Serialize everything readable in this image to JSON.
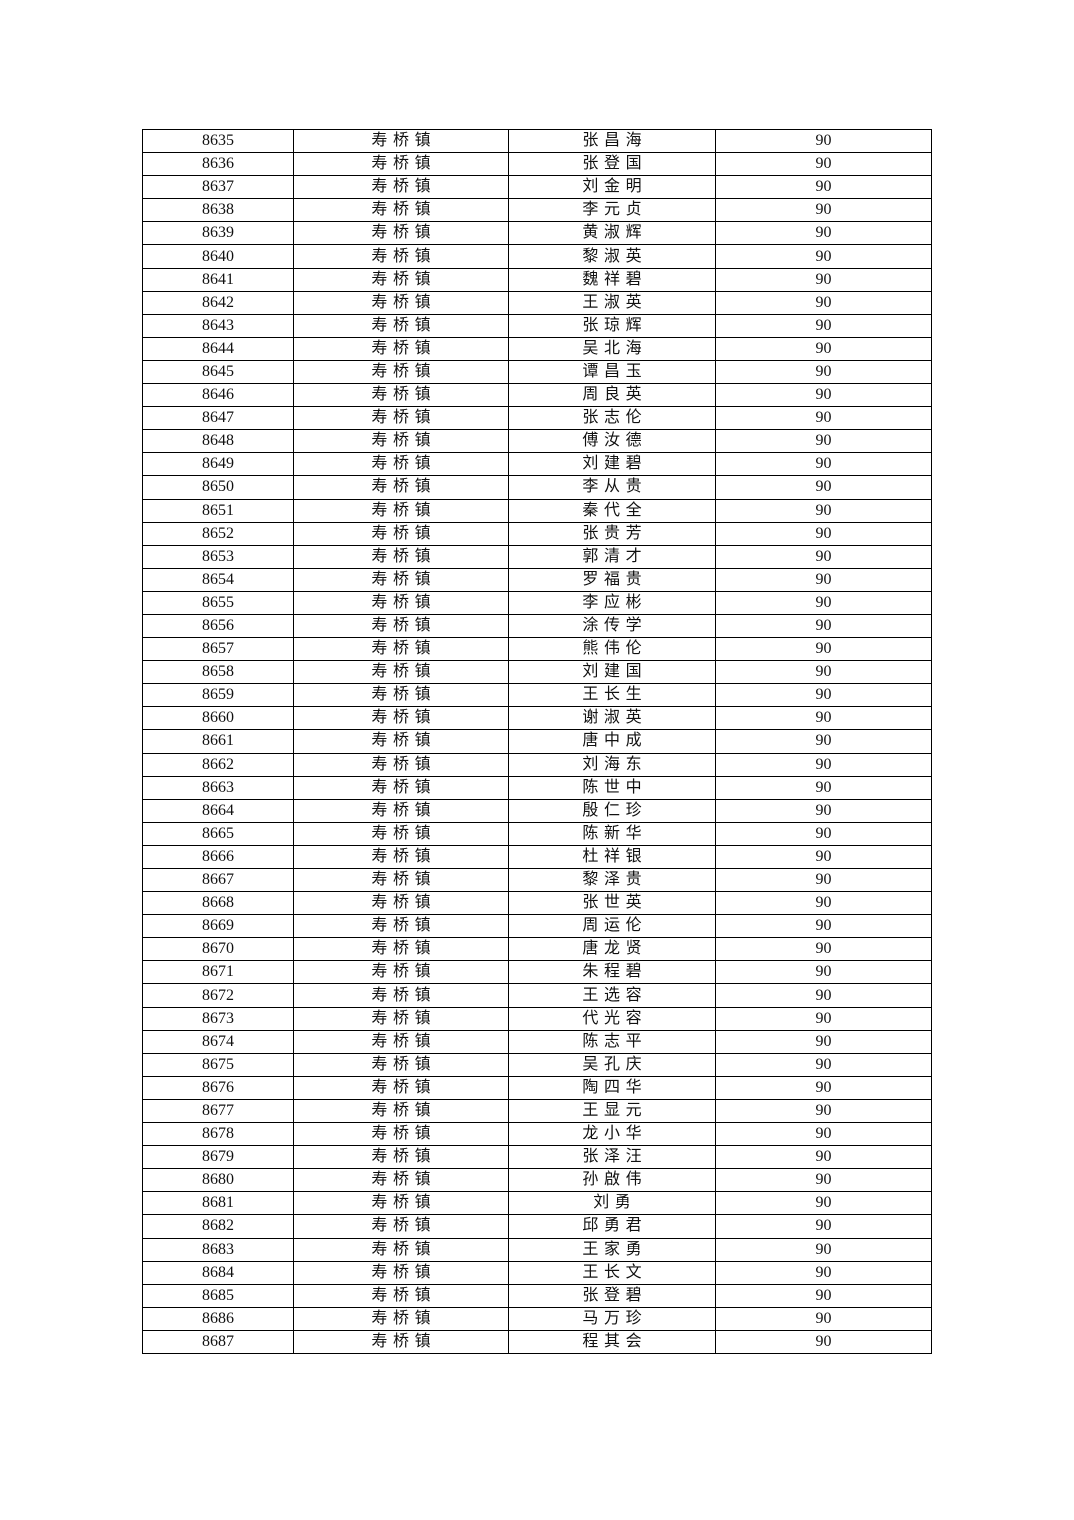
{
  "rows": [
    [
      "8635",
      "寿桥镇",
      "张昌海",
      "90"
    ],
    [
      "8636",
      "寿桥镇",
      "张登国",
      "90"
    ],
    [
      "8637",
      "寿桥镇",
      "刘金明",
      "90"
    ],
    [
      "8638",
      "寿桥镇",
      "李元贞",
      "90"
    ],
    [
      "8639",
      "寿桥镇",
      "黄淑辉",
      "90"
    ],
    [
      "8640",
      "寿桥镇",
      "黎淑英",
      "90"
    ],
    [
      "8641",
      "寿桥镇",
      "魏祥碧",
      "90"
    ],
    [
      "8642",
      "寿桥镇",
      "王淑英",
      "90"
    ],
    [
      "8643",
      "寿桥镇",
      "张琼辉",
      "90"
    ],
    [
      "8644",
      "寿桥镇",
      "吴北海",
      "90"
    ],
    [
      "8645",
      "寿桥镇",
      "谭昌玉",
      "90"
    ],
    [
      "8646",
      "寿桥镇",
      "周良英",
      "90"
    ],
    [
      "8647",
      "寿桥镇",
      "张志伦",
      "90"
    ],
    [
      "8648",
      "寿桥镇",
      "傅汝德",
      "90"
    ],
    [
      "8649",
      "寿桥镇",
      "刘建碧",
      "90"
    ],
    [
      "8650",
      "寿桥镇",
      "李从贵",
      "90"
    ],
    [
      "8651",
      "寿桥镇",
      "秦代全",
      "90"
    ],
    [
      "8652",
      "寿桥镇",
      "张贵芳",
      "90"
    ],
    [
      "8653",
      "寿桥镇",
      "郭清才",
      "90"
    ],
    [
      "8654",
      "寿桥镇",
      "罗福贵",
      "90"
    ],
    [
      "8655",
      "寿桥镇",
      "李应彬",
      "90"
    ],
    [
      "8656",
      "寿桥镇",
      "涂传学",
      "90"
    ],
    [
      "8657",
      "寿桥镇",
      "熊伟伦",
      "90"
    ],
    [
      "8658",
      "寿桥镇",
      "刘建国",
      "90"
    ],
    [
      "8659",
      "寿桥镇",
      "王长生",
      "90"
    ],
    [
      "8660",
      "寿桥镇",
      "谢淑英",
      "90"
    ],
    [
      "8661",
      "寿桥镇",
      "唐中成",
      "90"
    ],
    [
      "8662",
      "寿桥镇",
      "刘海东",
      "90"
    ],
    [
      "8663",
      "寿桥镇",
      "陈世中",
      "90"
    ],
    [
      "8664",
      "寿桥镇",
      "殷仁珍",
      "90"
    ],
    [
      "8665",
      "寿桥镇",
      "陈新华",
      "90"
    ],
    [
      "8666",
      "寿桥镇",
      "杜祥银",
      "90"
    ],
    [
      "8667",
      "寿桥镇",
      "黎泽贵",
      "90"
    ],
    [
      "8668",
      "寿桥镇",
      "张世英",
      "90"
    ],
    [
      "8669",
      "寿桥镇",
      "周运伦",
      "90"
    ],
    [
      "8670",
      "寿桥镇",
      "唐龙贤",
      "90"
    ],
    [
      "8671",
      "寿桥镇",
      "朱程碧",
      "90"
    ],
    [
      "8672",
      "寿桥镇",
      "王选容",
      "90"
    ],
    [
      "8673",
      "寿桥镇",
      "代光容",
      "90"
    ],
    [
      "8674",
      "寿桥镇",
      "陈志平",
      "90"
    ],
    [
      "8675",
      "寿桥镇",
      "吴孔庆",
      "90"
    ],
    [
      "8676",
      "寿桥镇",
      "陶四华",
      "90"
    ],
    [
      "8677",
      "寿桥镇",
      "王显元",
      "90"
    ],
    [
      "8678",
      "寿桥镇",
      "龙小华",
      "90"
    ],
    [
      "8679",
      "寿桥镇",
      "张泽汪",
      "90"
    ],
    [
      "8680",
      "寿桥镇",
      "孙啟伟",
      "90"
    ],
    [
      "8681",
      "寿桥镇",
      "刘勇",
      "90"
    ],
    [
      "8682",
      "寿桥镇",
      "邱勇君",
      "90"
    ],
    [
      "8683",
      "寿桥镇",
      "王家勇",
      "90"
    ],
    [
      "8684",
      "寿桥镇",
      "王长文",
      "90"
    ],
    [
      "8685",
      "寿桥镇",
      "张登碧",
      "90"
    ],
    [
      "8686",
      "寿桥镇",
      "马万珍",
      "90"
    ],
    [
      "8687",
      "寿桥镇",
      "程其会",
      "90"
    ]
  ]
}
